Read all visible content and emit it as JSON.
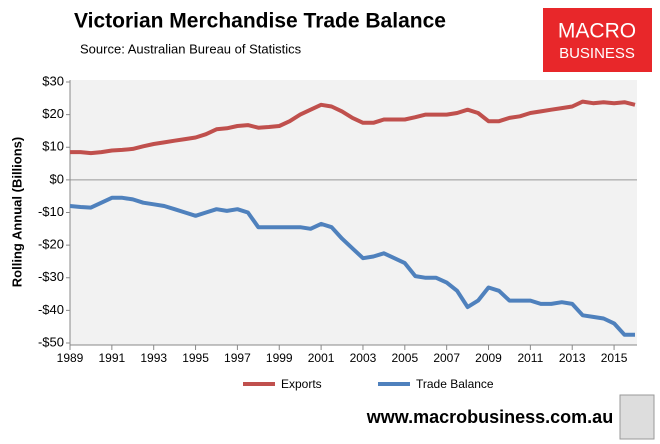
{
  "chart_data": {
    "type": "line",
    "title": "Victorian Merchandise Trade Balance",
    "subtitle": "Source: Australian Bureau of Statistics",
    "y_label": "Rolling Annual (Billions)",
    "logo": [
      "MACRO",
      "BUSINESS"
    ],
    "footer": "www.macrobusiness.com.au",
    "x": [
      1989,
      1989.5,
      1990,
      1990.5,
      1991,
      1991.5,
      1992,
      1992.5,
      1993,
      1993.5,
      1994,
      1994.5,
      1995,
      1995.5,
      1996,
      1996.5,
      1997,
      1997.5,
      1998,
      1998.5,
      1999,
      1999.5,
      2000,
      2000.5,
      2001,
      2001.5,
      2002,
      2002.5,
      2003,
      2003.5,
      2004,
      2004.5,
      2005,
      2005.5,
      2006,
      2006.5,
      2007,
      2007.5,
      2008,
      2008.5,
      2009,
      2009.5,
      2010,
      2010.5,
      2011,
      2011.5,
      2012,
      2012.5,
      2013,
      2013.5,
      2014,
      2014.5,
      2015,
      2015.5,
      2016
    ],
    "series": [
      {
        "name": "Exports",
        "color": "#c0504d",
        "values": [
          8.5,
          8.5,
          8.2,
          8.5,
          9,
          9.2,
          9.5,
          10.3,
          11,
          11.5,
          12,
          12.5,
          13,
          14,
          15.5,
          15.8,
          16.5,
          16.8,
          16,
          16.2,
          16.5,
          18,
          20,
          21.5,
          23,
          22.5,
          21,
          19,
          17.5,
          17.5,
          18.5,
          18.5,
          18.5,
          19.2,
          20,
          20,
          20,
          20.5,
          21.5,
          20.5,
          18,
          18,
          19,
          19.5,
          20.5,
          21,
          21.5,
          22,
          22.5,
          24,
          23.5,
          23.8,
          23.5,
          23.8,
          23
        ]
      },
      {
        "name": "Trade Balance",
        "color": "#4f81bd",
        "values": [
          -8,
          -8.3,
          -8.5,
          -7,
          -5.5,
          -5.5,
          -6,
          -7,
          -7.5,
          -8,
          -9,
          -10,
          -11,
          -10,
          -9,
          -9.5,
          -9,
          -10,
          -14.5,
          -14.5,
          -14.5,
          -14.5,
          -14.5,
          -15,
          -13.5,
          -14.5,
          -18,
          -21,
          -24,
          -23.5,
          -22.5,
          -24,
          -25.5,
          -29.5,
          -30,
          -30,
          -31.5,
          -34,
          -39,
          -37,
          -33,
          -34,
          -37,
          -37,
          -37,
          -38,
          -38,
          -37.5,
          -38,
          -41.5,
          -42,
          -42.5,
          -44,
          -47.5,
          -47.5
        ]
      }
    ],
    "xlim": [
      1989,
      2016
    ],
    "xticks": [
      1989,
      1991,
      1993,
      1995,
      1997,
      1999,
      2001,
      2003,
      2005,
      2007,
      2009,
      2011,
      2013,
      2015
    ],
    "ylim": [
      -50,
      30
    ],
    "yticks": [
      {
        "value": 30,
        "label": "$30"
      },
      {
        "value": 20,
        "label": "$20"
      },
      {
        "value": 10,
        "label": "$10"
      },
      {
        "value": 0,
        "label": "$0"
      },
      {
        "value": -10,
        "label": "-$10"
      },
      {
        "value": -20,
        "label": "-$20"
      },
      {
        "value": -30,
        "label": "-$30"
      },
      {
        "value": -40,
        "label": "-$40"
      },
      {
        "value": -50,
        "label": "-$50"
      }
    ]
  }
}
